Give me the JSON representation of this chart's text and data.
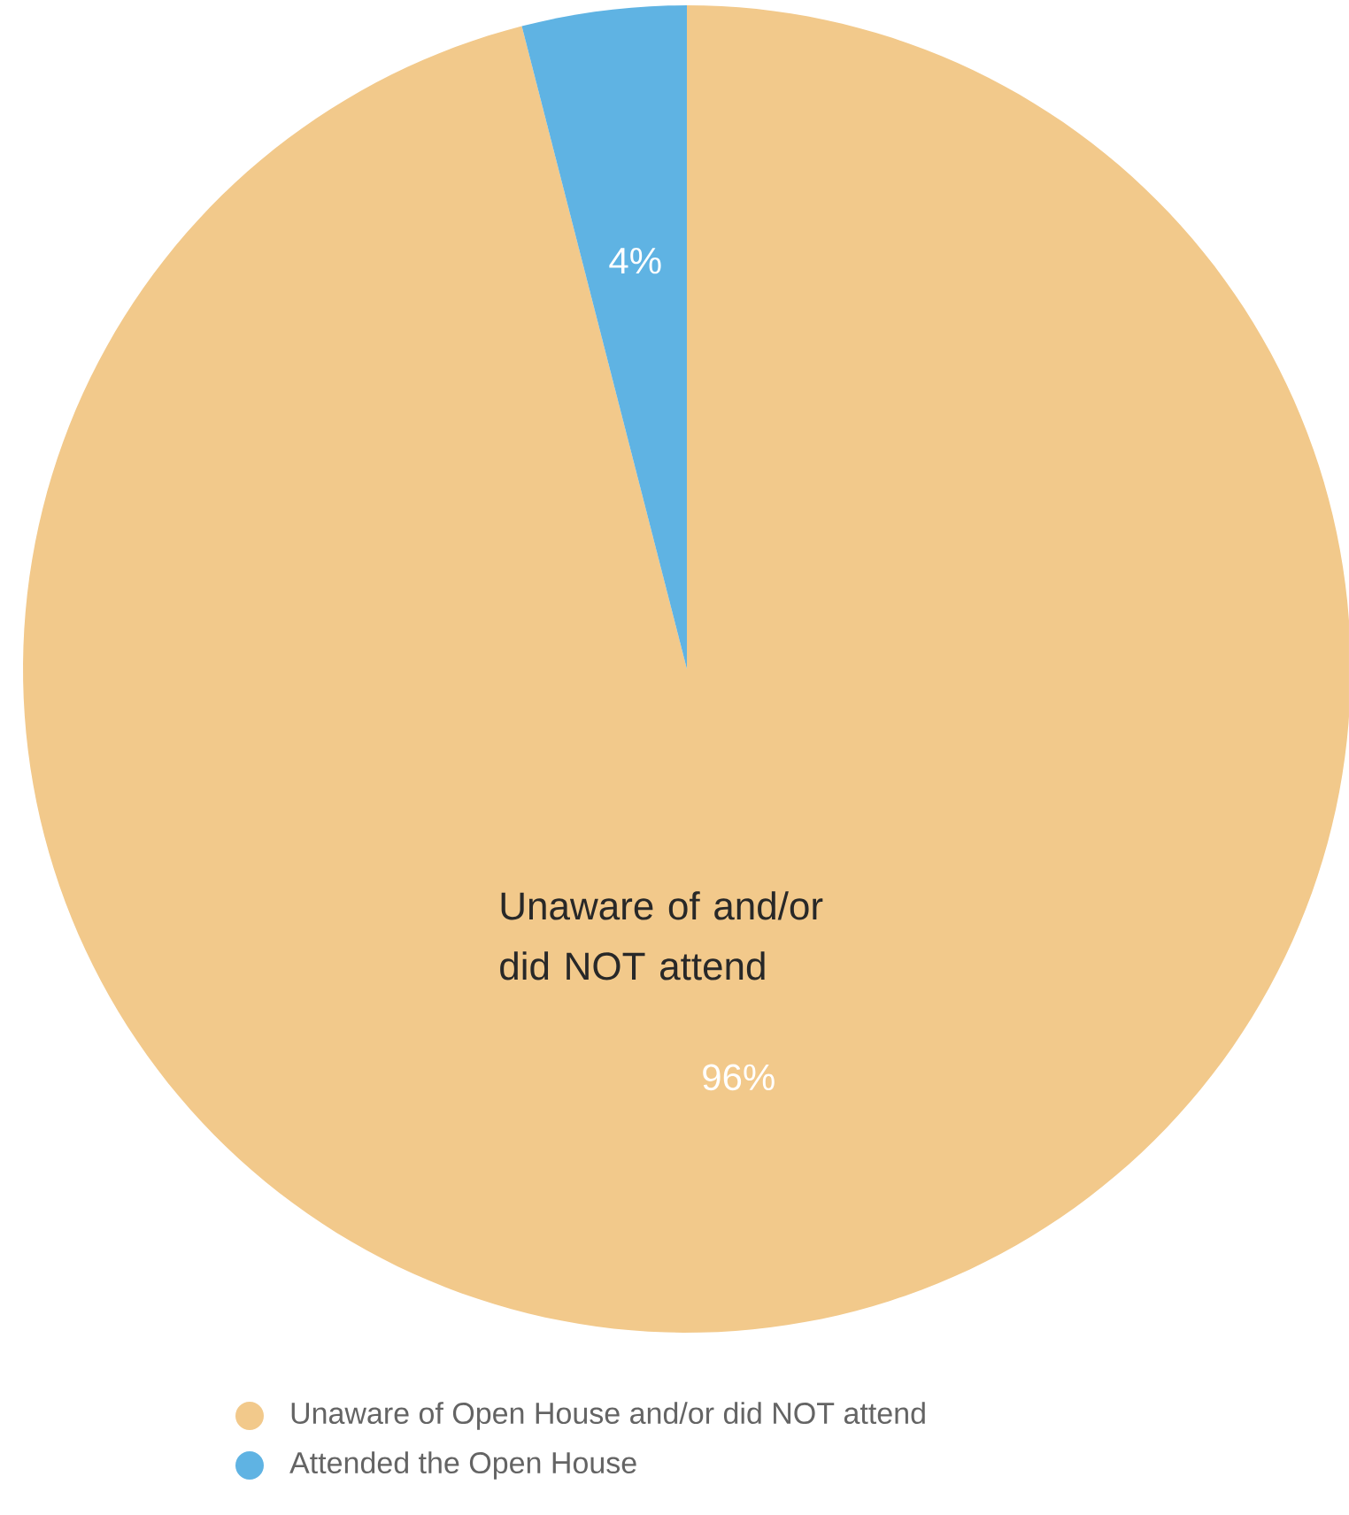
{
  "chart_data": {
    "type": "pie",
    "categories": [
      "Unaware of Open House and/or did NOT attend",
      "Attended the Open House"
    ],
    "values": [
      96,
      4
    ],
    "colors": [
      "#f2c98b",
      "#5fb3e3"
    ],
    "data_labels": true,
    "value_labels": [
      "96%",
      "4%"
    ],
    "annotations": [
      "Unaware of and/or did NOT attend"
    ],
    "legend": "bottom"
  }
}
